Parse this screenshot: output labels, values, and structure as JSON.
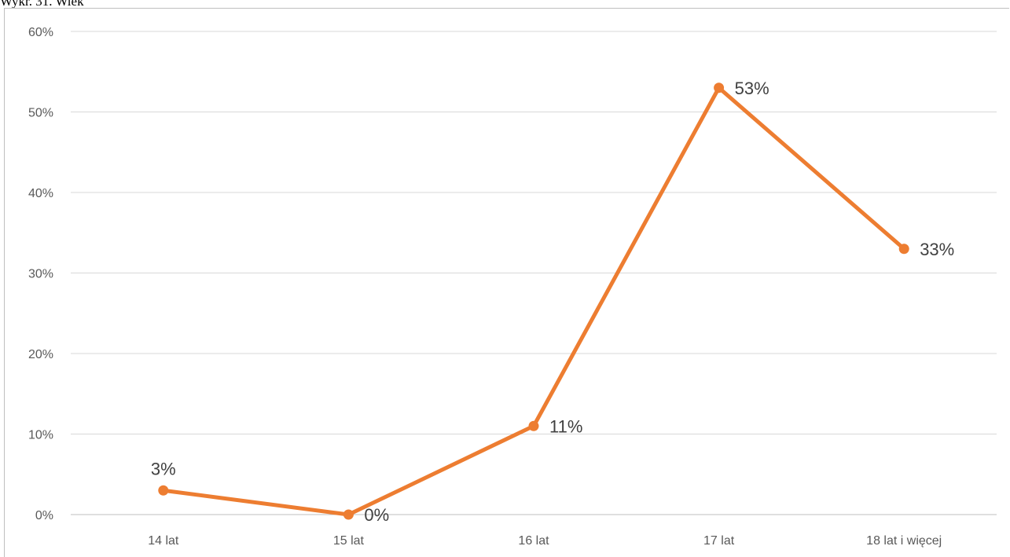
{
  "caption": "Wykr. 31. Wiek",
  "chart_data": {
    "type": "line",
    "categories": [
      "14 lat",
      "15 lat",
      "16 lat",
      "17 lat",
      "18 lat i więcej"
    ],
    "series": [
      {
        "values": [
          3,
          0,
          11,
          53,
          33
        ],
        "color": "#ED7D31"
      }
    ],
    "data_labels": [
      "3%",
      "0%",
      "11%",
      "53%",
      "33%"
    ],
    "y_ticks": [
      "0%",
      "10%",
      "20%",
      "30%",
      "40%",
      "50%",
      "60%"
    ],
    "ylim": [
      0,
      60
    ],
    "grid": true,
    "legend": "none",
    "title": "",
    "xlabel": "",
    "ylabel": ""
  }
}
